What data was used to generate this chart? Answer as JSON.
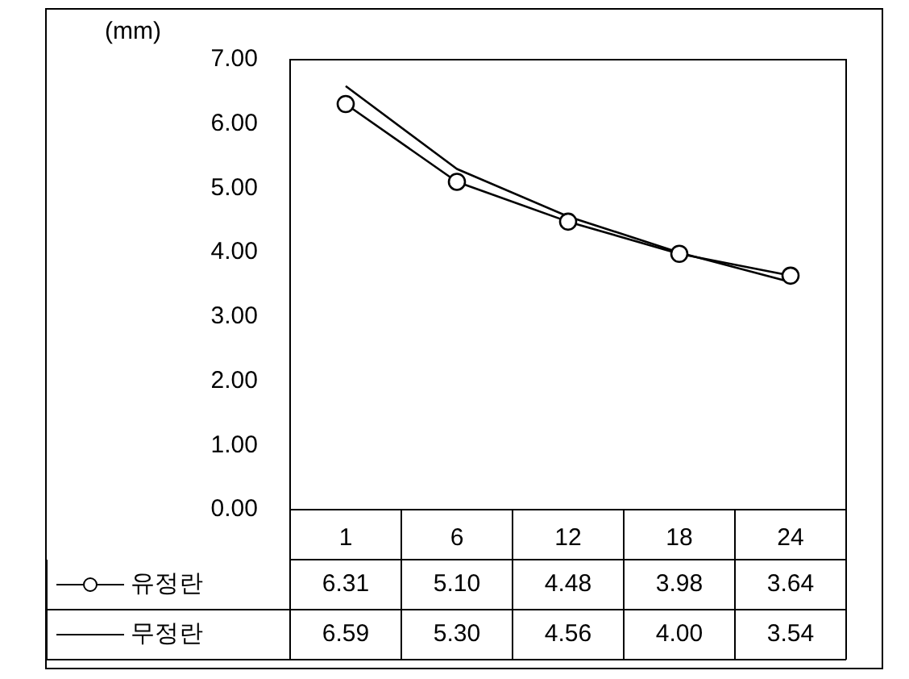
{
  "chart_data": {
    "type": "line",
    "ylabel": "(mm)",
    "categories": [
      "1",
      "6",
      "12",
      "18",
      "24"
    ],
    "series": [
      {
        "name": "유정란",
        "color": "#000000",
        "marker": "circle",
        "values": [
          6.31,
          5.1,
          4.48,
          3.98,
          3.64
        ],
        "value_labels": [
          "6.31",
          "5.10",
          "4.48",
          "3.98",
          "3.64"
        ]
      },
      {
        "name": "무정란",
        "color": "#000000",
        "marker": "none",
        "values": [
          6.59,
          5.3,
          4.56,
          4.0,
          3.54
        ],
        "value_labels": [
          "6.59",
          "5.30",
          "4.56",
          "4.00",
          "3.54"
        ]
      }
    ],
    "ylim": [
      0,
      7
    ],
    "yticks": [
      {
        "value": 0,
        "label": "0.00"
      },
      {
        "value": 1,
        "label": "1.00"
      },
      {
        "value": 2,
        "label": "2.00"
      },
      {
        "value": 3,
        "label": "3.00"
      },
      {
        "value": 4,
        "label": "4.00"
      },
      {
        "value": 5,
        "label": "5.00"
      },
      {
        "value": 6,
        "label": "6.00"
      },
      {
        "value": 7,
        "label": "7.00"
      }
    ],
    "grid": false,
    "legend": "bottom",
    "line_style": "solid"
  }
}
